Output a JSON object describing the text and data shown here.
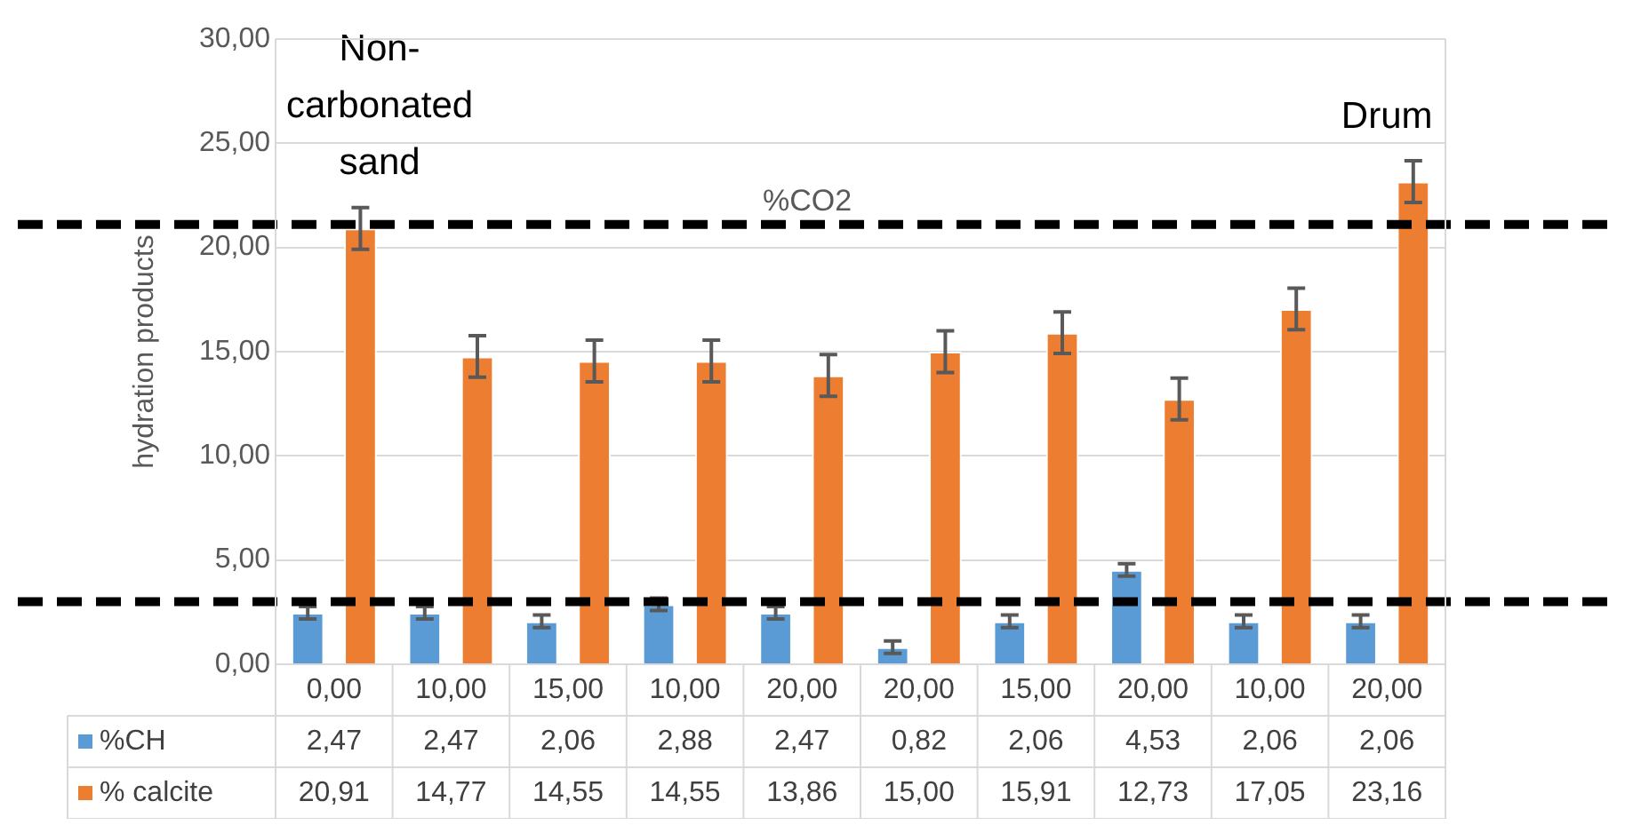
{
  "chart_data": {
    "type": "bar",
    "ylabel": "hydration products",
    "categories": [
      "0,00",
      "10,00",
      "15,00",
      "10,00",
      "20,00",
      "20,00",
      "15,00",
      "20,00",
      "10,00",
      "20,00"
    ],
    "series": [
      {
        "name": "%CH",
        "color": "#5b9bd5",
        "values": [
          2.47,
          2.47,
          2.06,
          2.88,
          2.47,
          0.82,
          2.06,
          4.53,
          2.06,
          2.06
        ],
        "errors": [
          0.3,
          0.3,
          0.3,
          0.3,
          0.3,
          0.3,
          0.3,
          0.3,
          0.3,
          0.3
        ],
        "value_labels": [
          "2,47",
          "2,47",
          "2,06",
          "2,88",
          "2,47",
          "0,82",
          "2,06",
          "4,53",
          "2,06",
          "2,06"
        ]
      },
      {
        "name": "% calcite",
        "color": "#ed7d31",
        "values": [
          20.91,
          14.77,
          14.55,
          14.55,
          13.86,
          15.0,
          15.91,
          12.73,
          17.05,
          23.16
        ],
        "errors": [
          1,
          1,
          1,
          1,
          1,
          1,
          1,
          1,
          1,
          1
        ],
        "value_labels": [
          "20,91",
          "14,77",
          "14,55",
          "14,55",
          "13,86",
          "15,00",
          "15,91",
          "12,73",
          "17,05",
          "23,16"
        ]
      }
    ],
    "ylim": [
      0,
      30
    ],
    "yticks": [
      {
        "value": 0,
        "label": "0,00"
      },
      {
        "value": 5,
        "label": "5,00"
      },
      {
        "value": 10,
        "label": "10,00"
      },
      {
        "value": 15,
        "label": "15,00"
      },
      {
        "value": 20,
        "label": "20,00"
      },
      {
        "value": 25,
        "label": "25,00"
      },
      {
        "value": 30,
        "label": "30,00"
      }
    ],
    "grid": "y",
    "legend": "bottom",
    "ref_lines": [
      {
        "axis": "y",
        "value": 21.1,
        "label": "%CO2",
        "color": "#000000",
        "line_style": "dashed"
      },
      {
        "axis": "y",
        "value": 3.0,
        "color": "#000000",
        "line_style": "dashed"
      }
    ],
    "annotations": [
      "Non-carbonated sand",
      "Drum"
    ]
  }
}
